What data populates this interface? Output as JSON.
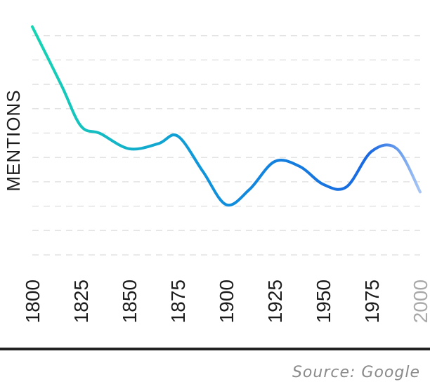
{
  "chart_data": {
    "type": "line",
    "title": "",
    "xlabel": "",
    "ylabel": "MENTIONS",
    "x": [
      1800,
      1815,
      1825,
      1835,
      1850,
      1865,
      1875,
      1888,
      1900,
      1912,
      1925,
      1938,
      1950,
      1962,
      1975,
      1988,
      2000
    ],
    "y": [
      95,
      72,
      56,
      53,
      47,
      49,
      52,
      38,
      25,
      31,
      42,
      40,
      33,
      32,
      46,
      47,
      30
    ],
    "xticks": [
      "1800",
      "1825",
      "1850",
      "1875",
      "1900",
      "1925",
      "1950",
      "1975",
      "2000"
    ],
    "xlim": [
      1800,
      2000
    ],
    "ylim": [
      0,
      100
    ],
    "grid": true,
    "legend": "none",
    "colors": {
      "start": "#16d5b3",
      "mid": "#0f93dc",
      "end": "#1a68e2",
      "fade": "#a8c6f5",
      "axis": "#222222",
      "grid": "#e3e3e3"
    }
  },
  "footer": {
    "source": "Source: Google"
  }
}
